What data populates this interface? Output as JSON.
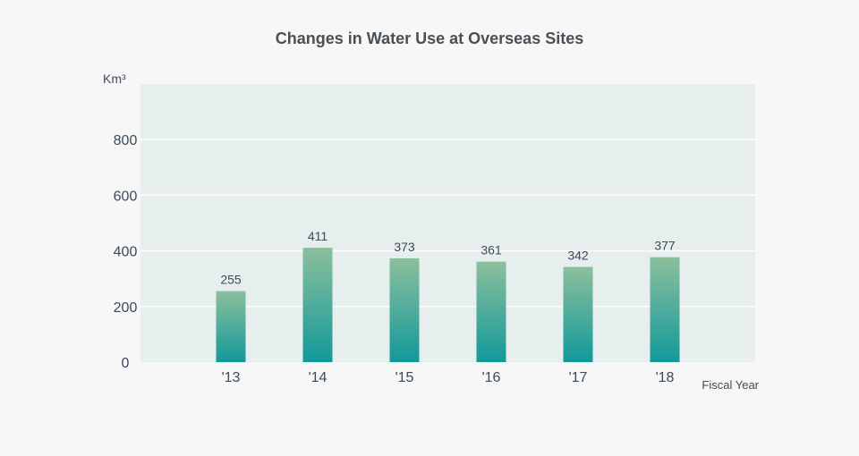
{
  "chart_data": {
    "type": "bar",
    "title": "Changes in Water Use at Overseas Sites",
    "ylabel": "Km³",
    "xlabel": "Fiscal Year",
    "categories": [
      "'13",
      "'14",
      "'15",
      "'16",
      "'17",
      "'18"
    ],
    "values": [
      255,
      411,
      373,
      361,
      342,
      377
    ],
    "value_labels": [
      "255",
      "411",
      "373",
      "361",
      "342",
      "377"
    ],
    "ylim": [
      0,
      1000
    ],
    "yticks": [
      0,
      200,
      400,
      600,
      800
    ],
    "ytick_labels": [
      "0",
      "200",
      "400",
      "600",
      "800"
    ],
    "grid": true,
    "legend": "none",
    "colors": {
      "bar_top": "#8cbf9c",
      "bar_bottom": "#12999a",
      "plot_bg": "#e7eeee",
      "page_bg": "#f7f7f7",
      "grid": "#ffffff",
      "text": "#3d4a5a"
    }
  }
}
